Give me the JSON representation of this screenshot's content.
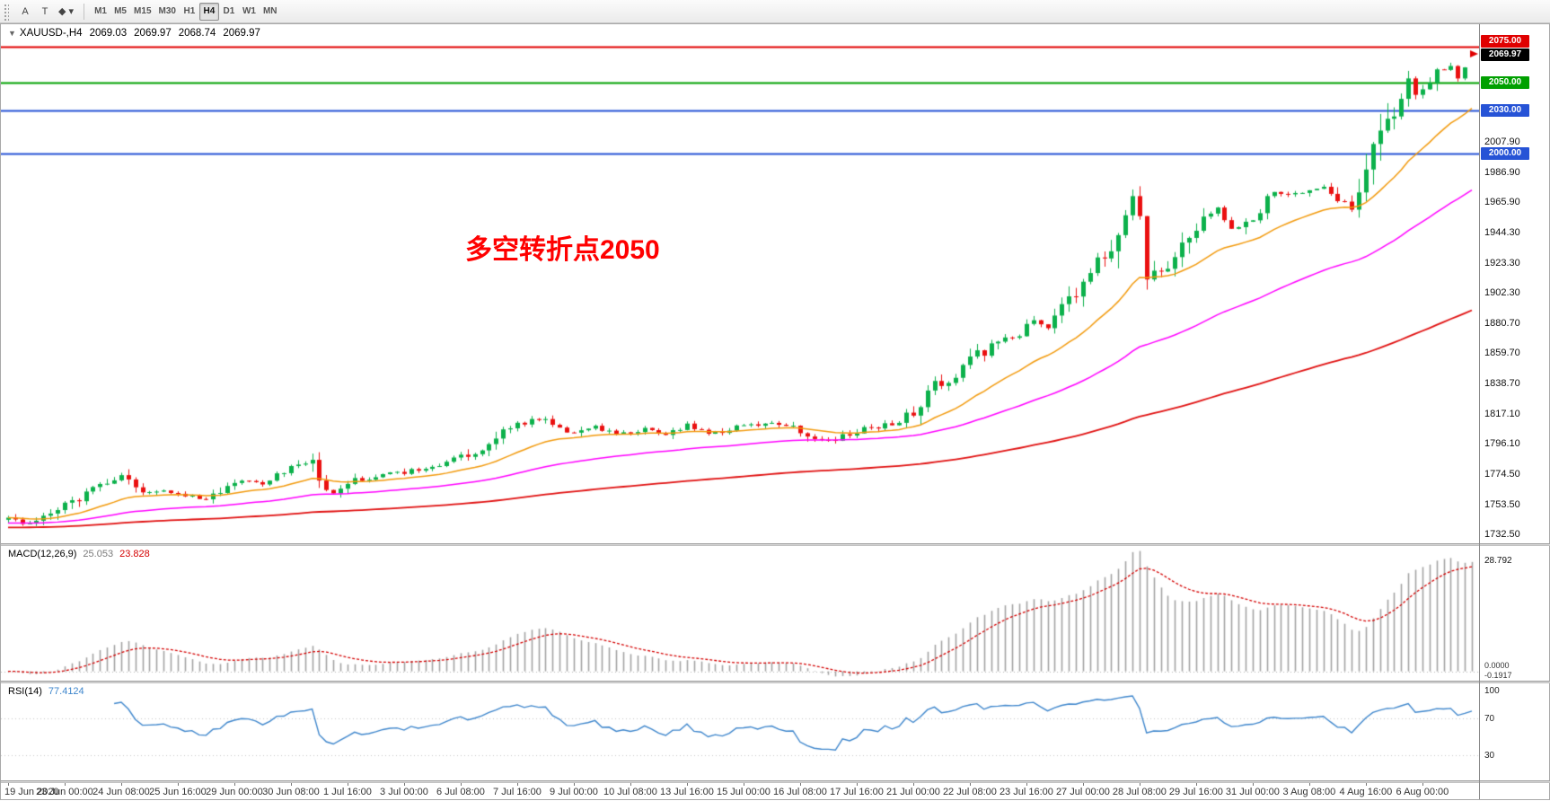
{
  "toolbar": {
    "tools": [
      {
        "name": "text-label-tool",
        "glyph": "A"
      },
      {
        "name": "text-tool",
        "glyph": "T"
      },
      {
        "name": "shapes-tool",
        "glyph": "◆",
        "caret": "▾"
      }
    ],
    "timeframes": [
      "M1",
      "M5",
      "M15",
      "M30",
      "H1",
      "H4",
      "D1",
      "W1",
      "MN"
    ],
    "active_timeframe": "H4"
  },
  "header": {
    "collapse_glyph": "▼",
    "symbol": "XAUUSD-,H4",
    "open": "2069.03",
    "high": "2069.97",
    "low": "2068.74",
    "close": "2069.97"
  },
  "annotation": {
    "text": "多空转折点2050",
    "color": "#ff0000"
  },
  "chart_data": {
    "type": "candlestick",
    "symbol": "XAUUSD",
    "timeframe": "H4",
    "current_ohlc": {
      "open": 2069.03,
      "high": 2069.97,
      "low": 2068.74,
      "close": 2069.97
    },
    "current_price_tag": {
      "value": "2069.97",
      "bg": "#000000"
    },
    "visible_price_range": [
      1726.2,
      2090.8
    ],
    "y_ticks": [
      2007.9,
      1986.9,
      1965.9,
      1944.3,
      1923.3,
      1902.3,
      1880.7,
      1859.7,
      1838.7,
      1817.1,
      1796.1,
      1774.5,
      1753.5,
      1732.5
    ],
    "price_lines": [
      {
        "price": 2075.0,
        "label": "2075.00",
        "color": "#e00000",
        "width": 2
      },
      {
        "price": 2050.0,
        "label": "2050.00",
        "color": "#00a000",
        "width": 2
      },
      {
        "price": 2030.0,
        "label": "2030.00",
        "color": "#2653d6",
        "width": 2
      },
      {
        "price": 2000.0,
        "label": "2000.00",
        "color": "#2653d6",
        "width": 2
      }
    ],
    "x_labels": [
      "19 Jun 2020",
      "23 Jun 00:00",
      "24 Jun 08:00",
      "25 Jun 16:00",
      "29 Jun 00:00",
      "30 Jun 08:00",
      "1 Jul 16:00",
      "3 Jul 00:00",
      "6 Jul 08:00",
      "7 Jul 16:00",
      "9 Jul 00:00",
      "10 Jul 08:00",
      "13 Jul 16:00",
      "15 Jul 00:00",
      "16 Jul 08:00",
      "17 Jul 16:00",
      "21 Jul 00:00",
      "22 Jul 08:00",
      "23 Jul 16:00",
      "27 Jul 00:00",
      "28 Jul 08:00",
      "29 Jul 16:00",
      "31 Jul 00:00",
      "3 Aug 08:00",
      "4 Aug 16:00",
      "6 Aug 00:00"
    ],
    "candles_per_label": 8,
    "candle_count": 208,
    "candle_up_color": "#0cb14b",
    "candle_down_color": "#ea1010",
    "price_waypoints": [
      [
        0,
        1744
      ],
      [
        3,
        1740
      ],
      [
        6,
        1746
      ],
      [
        8,
        1753
      ],
      [
        12,
        1764
      ],
      [
        16,
        1774
      ],
      [
        19,
        1760
      ],
      [
        22,
        1763
      ],
      [
        26,
        1759
      ],
      [
        28,
        1756
      ],
      [
        32,
        1770
      ],
      [
        36,
        1768
      ],
      [
        40,
        1779
      ],
      [
        43,
        1785
      ],
      [
        45,
        1759
      ],
      [
        48,
        1769
      ],
      [
        52,
        1773
      ],
      [
        56,
        1776
      ],
      [
        60,
        1780
      ],
      [
        64,
        1786
      ],
      [
        68,
        1796
      ],
      [
        71,
        1809
      ],
      [
        74,
        1812
      ],
      [
        76,
        1815
      ],
      [
        79,
        1803
      ],
      [
        83,
        1808
      ],
      [
        86,
        1803
      ],
      [
        90,
        1806
      ],
      [
        93,
        1801
      ],
      [
        96,
        1810
      ],
      [
        99,
        1803
      ],
      [
        102,
        1806
      ],
      [
        106,
        1810
      ],
      [
        109,
        1811
      ],
      [
        112,
        1806
      ],
      [
        115,
        1798
      ],
      [
        118,
        1801
      ],
      [
        121,
        1806
      ],
      [
        124,
        1809
      ],
      [
        128,
        1817
      ],
      [
        131,
        1838
      ],
      [
        134,
        1843
      ],
      [
        137,
        1858
      ],
      [
        140,
        1867
      ],
      [
        143,
        1872
      ],
      [
        145,
        1884
      ],
      [
        147,
        1879
      ],
      [
        150,
        1896
      ],
      [
        151,
        1901
      ],
      [
        152,
        1912
      ],
      [
        154,
        1925
      ],
      [
        156,
        1936
      ],
      [
        157,
        1941
      ],
      [
        158,
        1956
      ],
      [
        159,
        1975
      ],
      [
        160,
        1952
      ],
      [
        161,
        1914
      ],
      [
        163,
        1917
      ],
      [
        165,
        1928
      ],
      [
        167,
        1943
      ],
      [
        169,
        1955
      ],
      [
        171,
        1960
      ],
      [
        173,
        1946
      ],
      [
        175,
        1953
      ],
      [
        177,
        1961
      ],
      [
        179,
        1974
      ],
      [
        181,
        1970
      ],
      [
        184,
        1973
      ],
      [
        186,
        1977
      ],
      [
        188,
        1970
      ],
      [
        190,
        1961
      ],
      [
        192,
        1987
      ],
      [
        194,
        2018
      ],
      [
        196,
        2031
      ],
      [
        198,
        2049
      ],
      [
        199,
        2038
      ],
      [
        200,
        2046
      ],
      [
        202,
        2057
      ],
      [
        204,
        2063
      ],
      [
        205,
        2053
      ],
      [
        206,
        2061
      ],
      [
        207,
        2069.97
      ]
    ],
    "moving_averages": [
      {
        "name": "ma-fast",
        "period": 20,
        "color": "#f29a0d"
      },
      {
        "name": "ma-medium",
        "period": 60,
        "color": "#ff00ff"
      },
      {
        "name": "ma-slow",
        "period": 170,
        "color": "#e01010"
      }
    ],
    "macd": {
      "label": "MACD(12,26,9)",
      "fast": 12,
      "slow": 26,
      "signal": 9,
      "value_main": "25.053",
      "value_signal": "23.828",
      "axis_max_label": "28.792",
      "axis_zero_label": "0.0000",
      "axis_min_label": "-0.1917",
      "histogram_color": "#a3a3a3",
      "signal_color": "#d40000"
    },
    "rsi": {
      "label": "RSI(14)",
      "period": 14,
      "value": "77.4124",
      "line_color": "#3e86cc",
      "axis_labels": [
        100,
        70,
        30
      ],
      "level_lines": [
        70,
        30
      ]
    }
  }
}
